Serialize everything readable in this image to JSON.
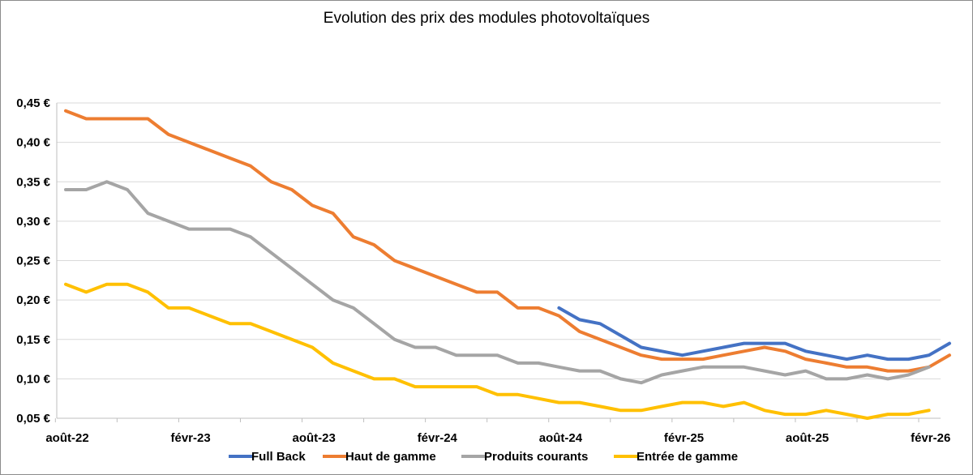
{
  "chart_data": {
    "type": "line",
    "title": "Evolution des prix des modules photovoltaïques",
    "xlabel": "",
    "ylabel": "",
    "ylim": [
      0.05,
      0.45
    ],
    "yticks": [
      0.05,
      0.1,
      0.15,
      0.2,
      0.25,
      0.3,
      0.35,
      0.4,
      0.45
    ],
    "ytick_labels": [
      "0,05 €",
      "0,10 €",
      "0,15 €",
      "0,20 €",
      "0,25 €",
      "0,30 €",
      "0,35 €",
      "0,40 €",
      "0,45 €"
    ],
    "x_count": 44,
    "x_tick_indices": [
      0,
      6,
      12,
      18,
      24,
      30,
      36,
      42
    ],
    "x_tick_labels": [
      "août-22",
      "févr-23",
      "août-23",
      "févr-24",
      "août-24",
      "févr-25",
      "août-25",
      "févr-26"
    ],
    "grid": true,
    "legend": "bottom",
    "series": [
      {
        "name": "Full Back",
        "color": "#4472c4",
        "start_index": 24,
        "values": [
          0.19,
          0.175,
          0.17,
          0.155,
          0.14,
          0.135,
          0.13,
          0.135,
          0.14,
          0.145,
          0.145,
          0.145,
          0.135,
          0.13,
          0.125,
          0.13,
          0.125,
          0.125,
          0.13,
          0.145
        ]
      },
      {
        "name": "Haut de gamme",
        "color": "#ed7d31",
        "start_index": 0,
        "values": [
          0.44,
          0.43,
          0.43,
          0.43,
          0.43,
          0.41,
          0.4,
          0.39,
          0.38,
          0.37,
          0.35,
          0.34,
          0.32,
          0.31,
          0.28,
          0.27,
          0.25,
          0.24,
          0.23,
          0.22,
          0.21,
          0.21,
          0.19,
          0.19,
          0.18,
          0.16,
          0.15,
          0.14,
          0.13,
          0.125,
          0.125,
          0.125,
          0.13,
          0.135,
          0.14,
          0.135,
          0.125,
          0.12,
          0.115,
          0.115,
          0.11,
          0.11,
          0.115,
          0.13
        ]
      },
      {
        "name": "Produits courants",
        "color": "#a5a5a5",
        "start_index": 0,
        "values": [
          0.34,
          0.34,
          0.35,
          0.34,
          0.31,
          0.3,
          0.29,
          0.29,
          0.29,
          0.28,
          0.26,
          0.24,
          0.22,
          0.2,
          0.19,
          0.17,
          0.15,
          0.14,
          0.14,
          0.13,
          0.13,
          0.13,
          0.12,
          0.12,
          0.115,
          0.11,
          0.11,
          0.1,
          0.095,
          0.105,
          0.11,
          0.115,
          0.115,
          0.115,
          0.11,
          0.105,
          0.11,
          0.1,
          0.1,
          0.105,
          0.1,
          0.105,
          0.115
        ]
      },
      {
        "name": "Entrée de gamme",
        "color": "#ffc000",
        "start_index": 0,
        "values": [
          0.22,
          0.21,
          0.22,
          0.22,
          0.21,
          0.19,
          0.19,
          0.18,
          0.17,
          0.17,
          0.16,
          0.15,
          0.14,
          0.12,
          0.11,
          0.1,
          0.1,
          0.09,
          0.09,
          0.09,
          0.09,
          0.08,
          0.08,
          0.075,
          0.07,
          0.07,
          0.065,
          0.06,
          0.06,
          0.065,
          0.07,
          0.07,
          0.065,
          0.07,
          0.06,
          0.055,
          0.055,
          0.06,
          0.055,
          0.05,
          0.055,
          0.055,
          0.06
        ]
      }
    ]
  }
}
